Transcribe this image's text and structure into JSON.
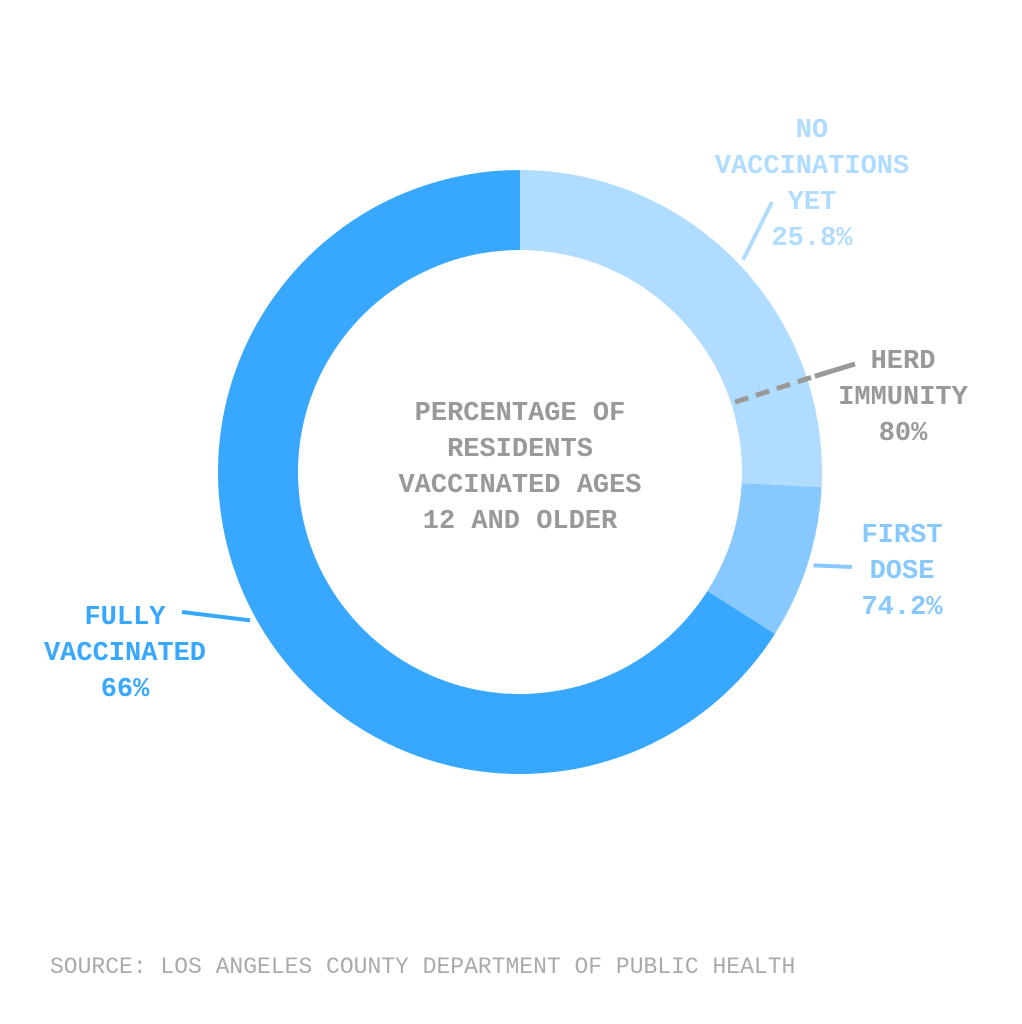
{
  "chart_data": {
    "type": "donut",
    "title": "PERCENTAGE OF RESIDENTS VACCINATED AGES 12 AND OLDER",
    "values": [
      66,
      8.2,
      25.8
    ],
    "colors": [
      "#38a8ff",
      "#87c9ff",
      "#b0dcff"
    ],
    "labels": [
      {
        "text": "FULLY VACCINATED",
        "value_label": "66%"
      },
      {
        "text": "FIRST DOSE",
        "value_label": "74.2%"
      },
      {
        "text": "NO VACCINATIONS YET",
        "value_label": "25.8%"
      }
    ],
    "reference": {
      "text": "HERD IMMUNITY",
      "value": 80,
      "value_label": "80%",
      "color": "#999999"
    },
    "source": "SOURCE: LOS ANGELES COUNTY DEPARTMENT OF PUBLIC HEALTH"
  }
}
